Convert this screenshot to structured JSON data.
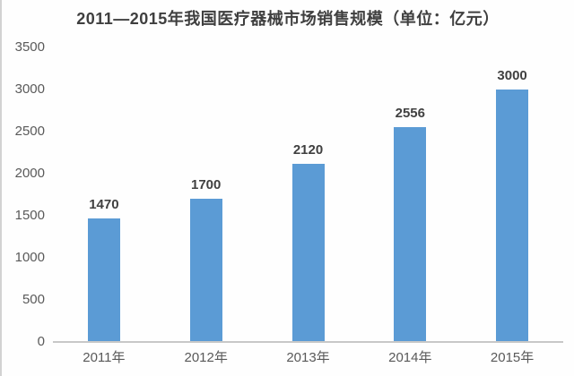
{
  "chart_data": {
    "type": "bar",
    "title": "2011—2015年我国医疗器械市场销售规模（单位：亿元）",
    "categories": [
      "2011年",
      "2012年",
      "2013年",
      "2014年",
      "2015年"
    ],
    "values": [
      1470,
      1700,
      2120,
      2556,
      3000
    ],
    "xlabel": "",
    "ylabel": "",
    "ylim": [
      0,
      3500
    ],
    "y_ticks": [
      0,
      500,
      1000,
      1500,
      2000,
      2500,
      3000,
      3500
    ],
    "grid": false,
    "legend": false,
    "colors": {
      "bar": "#5b9bd5",
      "title_text": "#3f3f3f",
      "value_label_text": "#404040",
      "tick_text": "#595959",
      "axis_line": "#c8c8c8",
      "background": "#fefefe",
      "edge_border": "#d2d2d2"
    }
  }
}
